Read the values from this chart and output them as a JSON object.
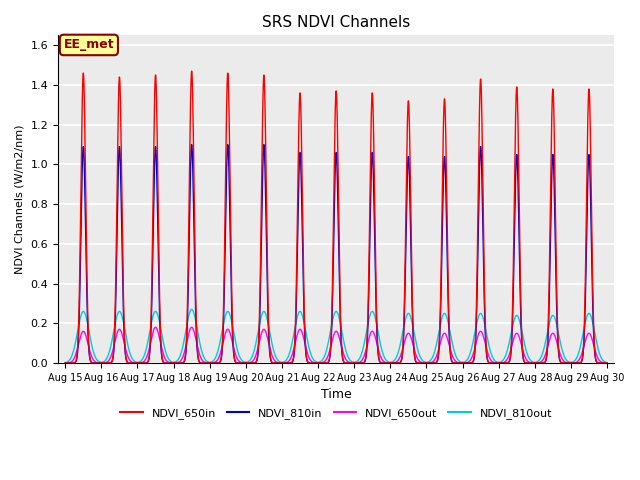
{
  "title": "SRS NDVI Channels",
  "xlabel": "Time",
  "ylabel": "NDVI Channels (W/m2/nm)",
  "ylim": [
    0.0,
    1.65
  ],
  "xlim": [
    -0.2,
    15.2
  ],
  "bg_color": "#ebebeb",
  "grid_color": "white",
  "annotation_text": "EE_met",
  "annotation_bg": "#ffff99",
  "annotation_border": "#8B0000",
  "lines": {
    "NDVI_650in": {
      "color": "#ff0000",
      "lw": 1.0
    },
    "NDVI_810in": {
      "color": "#0000cc",
      "lw": 1.0
    },
    "NDVI_650out": {
      "color": "#ff00ff",
      "lw": 1.0
    },
    "NDVI_810out": {
      "color": "#00ccdd",
      "lw": 1.0
    }
  },
  "tick_labels": [
    "Aug 15",
    "Aug 16",
    "Aug 17",
    "Aug 18",
    "Aug 19",
    "Aug 20",
    "Aug 21",
    "Aug 22",
    "Aug 23",
    "Aug 24",
    "Aug 25",
    "Aug 26",
    "Aug 27",
    "Aug 28",
    "Aug 29",
    "Aug 30"
  ],
  "peak_650in": [
    1.46,
    1.44,
    1.45,
    1.47,
    1.46,
    1.45,
    1.36,
    1.37,
    1.36,
    1.32,
    1.33,
    1.43,
    1.39,
    1.38,
    1.38
  ],
  "peak_810in": [
    1.09,
    1.09,
    1.09,
    1.1,
    1.1,
    1.1,
    1.06,
    1.06,
    1.06,
    1.04,
    1.04,
    1.09,
    1.05,
    1.05,
    1.05
  ],
  "peak_650out": [
    0.16,
    0.17,
    0.18,
    0.18,
    0.17,
    0.17,
    0.17,
    0.16,
    0.16,
    0.15,
    0.15,
    0.16,
    0.15,
    0.15,
    0.15
  ],
  "peak_810out": [
    0.26,
    0.26,
    0.26,
    0.27,
    0.26,
    0.26,
    0.26,
    0.26,
    0.26,
    0.25,
    0.25,
    0.25,
    0.24,
    0.24,
    0.25
  ]
}
